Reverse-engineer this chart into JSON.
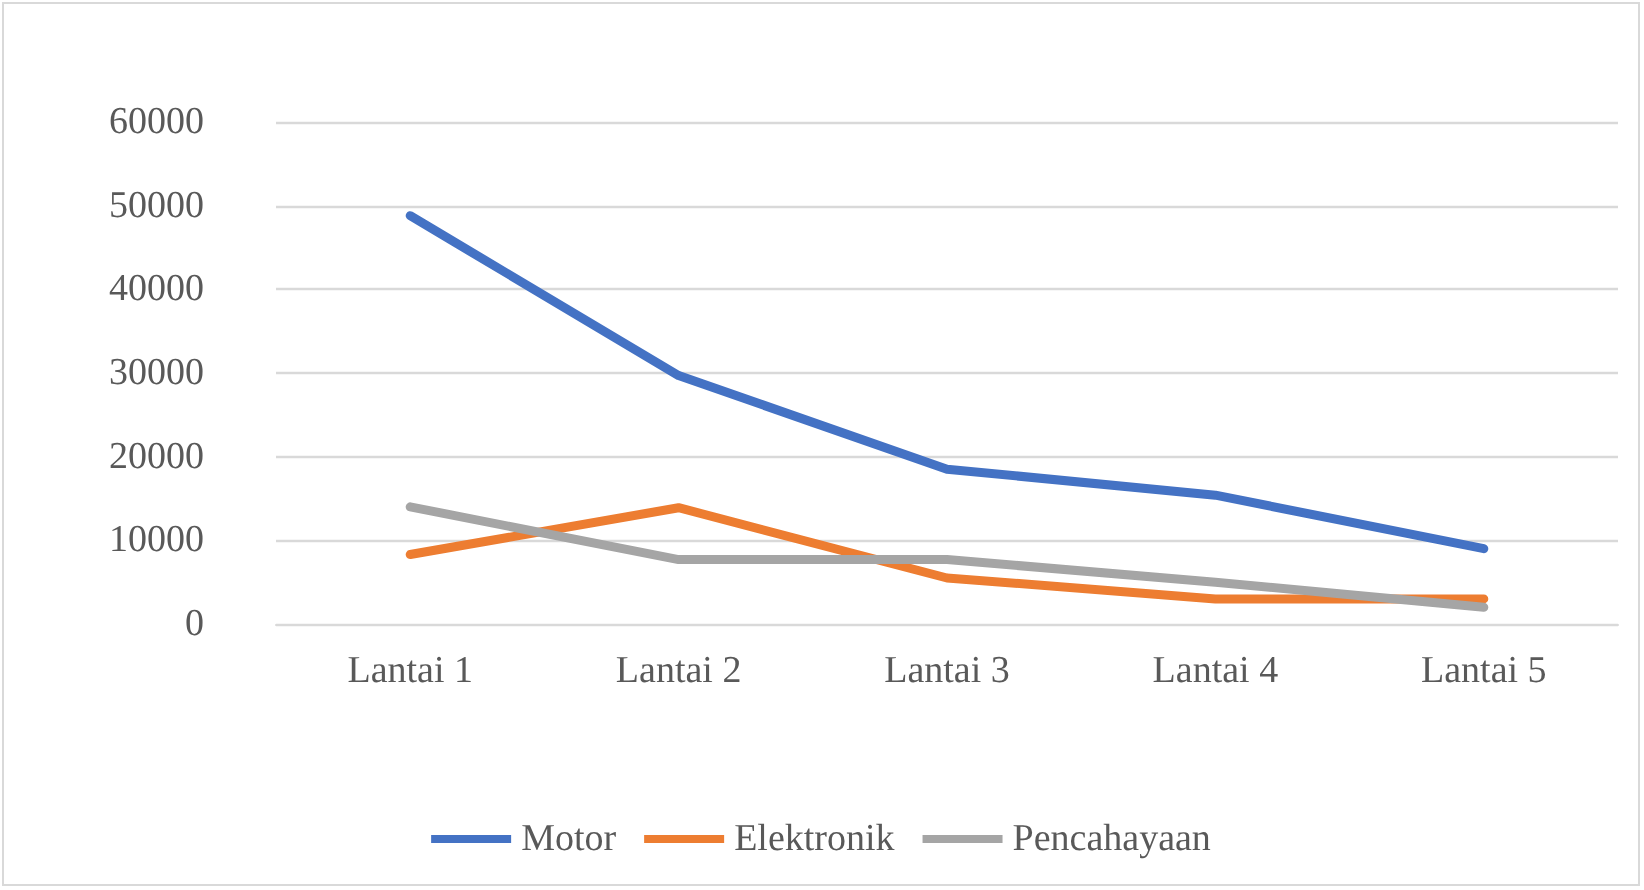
{
  "chart_data": {
    "type": "line",
    "categories": [
      "Lantai 1",
      "Lantai 2",
      "Lantai 3",
      "Lantai 4",
      "Lantai 5"
    ],
    "series": [
      {
        "name": "Motor",
        "color": "#4472c4",
        "values": [
          48800,
          29700,
          18500,
          15400,
          9000
        ]
      },
      {
        "name": "Elektronik",
        "color": "#ed7d31",
        "values": [
          8300,
          13900,
          5500,
          3000,
          3000
        ]
      },
      {
        "name": "Pencahayaan",
        "color": "#a5a5a5",
        "values": [
          14000,
          7700,
          7700,
          5000,
          2000
        ]
      }
    ],
    "ylim": [
      0,
      60000
    ],
    "yticks": [
      0,
      10000,
      20000,
      30000,
      40000,
      50000,
      60000
    ],
    "grid": "y",
    "legend": "bottom",
    "marker": "none",
    "line_style": "solid"
  }
}
